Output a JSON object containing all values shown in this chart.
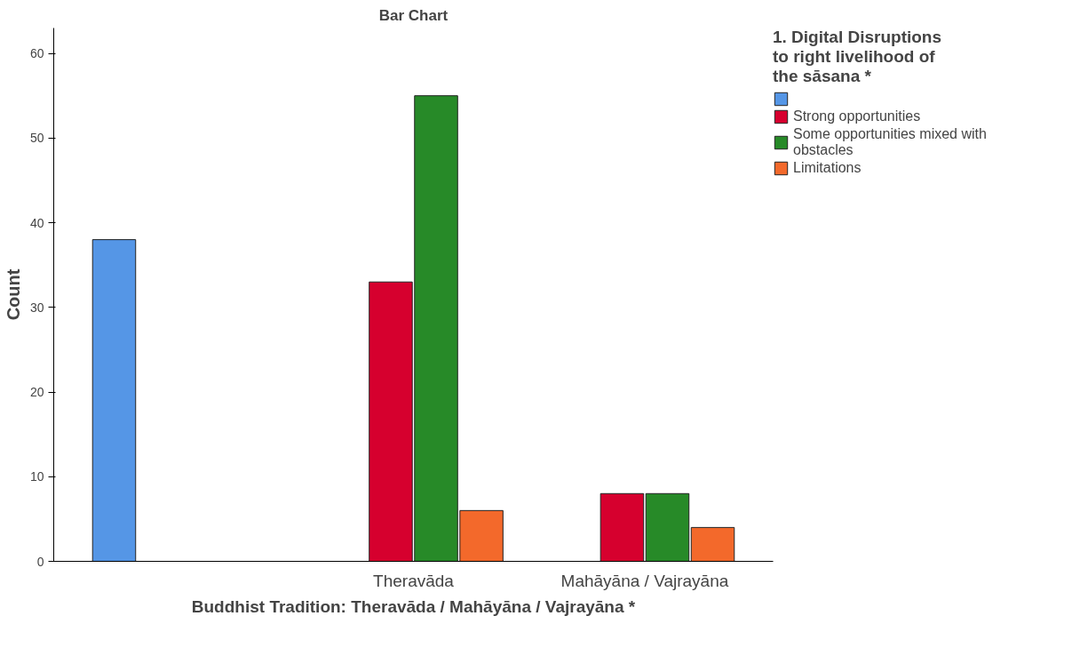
{
  "chart_data": {
    "type": "bar",
    "title": "Bar Chart",
    "xlabel": "Buddhist Tradition: Theravāda / Mahāyāna / Vajrayāna *",
    "ylabel": "Count",
    "legend_title": "1. Digital Disruptions to right livelihood of the sāsana *",
    "categories": [
      null,
      "Theravāda",
      "Mahāyāna / Vajrayāna"
    ],
    "series": [
      {
        "color": "#5596e6",
        "values": [
          38,
          null,
          null
        ]
      },
      {
        "name": "Strong opportunities",
        "color": "#d6002e",
        "values": [
          null,
          33,
          8
        ]
      },
      {
        "name": "Some opportunities mixed with obstacles",
        "color": "#278a28",
        "values": [
          null,
          55,
          8
        ]
      },
      {
        "name": "Limitations",
        "color": "#f3692b",
        "values": [
          null,
          6,
          4
        ]
      }
    ],
    "ylim": [
      0,
      63
    ],
    "yticks": [
      0,
      10,
      20,
      30,
      40,
      50,
      60
    ],
    "grid": false,
    "legend": "top right"
  }
}
